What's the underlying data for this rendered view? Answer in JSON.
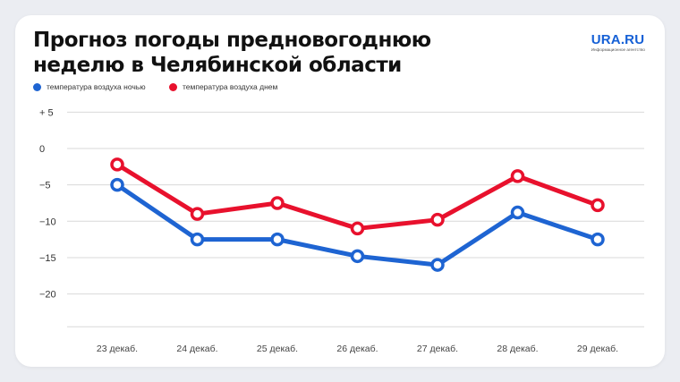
{
  "header": {
    "title_line1": "Прогноз погоды предновогоднюю",
    "title_line2": "неделю в Челябинской области",
    "logo_main": "URA.RU",
    "logo_sub": "Информационное агентство"
  },
  "colors": {
    "night": "#1e64d2",
    "day": "#e8112d",
    "grid": "#d9d9d9",
    "background": "#ebedf2",
    "card": "#ffffff"
  },
  "chart_data": {
    "type": "line",
    "title": "Прогноз погоды предновогоднюю неделю в Челябинской области",
    "categories": [
      "23 декаб.",
      "24 декаб.",
      "25 декаб.",
      "26 декаб.",
      "27 декаб.",
      "28 декаб.",
      "29 декаб."
    ],
    "series": [
      {
        "name": "температура воздуха ночью",
        "values": [
          -5,
          -12.5,
          -12.5,
          -14.8,
          -16,
          -8.8,
          -12.5
        ]
      },
      {
        "name": "температура воздуха днем",
        "values": [
          -2.2,
          -9,
          -7.5,
          -11,
          -9.8,
          -3.8,
          -7.8
        ]
      }
    ],
    "yticks": [
      "+ 5",
      "0",
      "−5",
      "−10",
      "−15",
      "−20"
    ],
    "ytick_values": [
      5,
      0,
      -5,
      -10,
      -15,
      -20
    ],
    "ylim": [
      -25,
      5
    ],
    "grid": true,
    "legend_position": "top-left"
  }
}
